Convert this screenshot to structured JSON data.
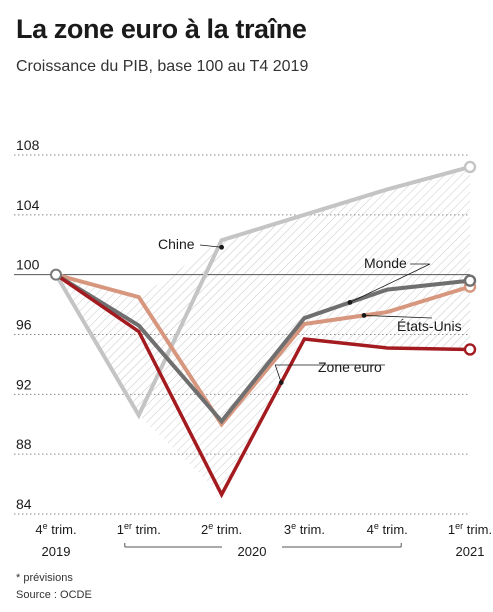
{
  "title": "La zone euro à la traîne",
  "subtitle": "Croissance du PIB, base 100 au T4 2019",
  "footnote": "* prévisions",
  "source": "Source : OCDE",
  "colors": {
    "chine": "#c4c4c4",
    "monde": "#6f6f6f",
    "etats_unis": "#d7977f",
    "zone_euro": "#a31a1f",
    "grid": "#8a8a8a"
  },
  "chart_data": {
    "type": "line",
    "title": "La zone euro à la traîne",
    "subtitle": "Croissance du PIB, base 100 au T4 2019",
    "ylim": [
      84,
      108
    ],
    "yticks": [
      84,
      88,
      92,
      96,
      100,
      104,
      108
    ],
    "grid": "horizontal dotted",
    "x_labels": [
      {
        "line1": "4",
        "sup": "e",
        "rest": " trim.",
        "line2": "2019"
      },
      {
        "line1": "1",
        "sup": "er",
        "rest": " trim.",
        "line2": ""
      },
      {
        "line1": "2",
        "sup": "e",
        "rest": " trim.",
        "line2": ""
      },
      {
        "line1": "3",
        "sup": "e",
        "rest": " trim.",
        "line2": ""
      },
      {
        "line1": "4",
        "sup": "e",
        "rest": " trim.",
        "line2": ""
      },
      {
        "line1": "1",
        "sup": "er",
        "rest": " trim.",
        "line2": "2021"
      }
    ],
    "year_bracket_label": "2020",
    "series": [
      {
        "name": "Chine",
        "color_key": "chine",
        "values": [
          100,
          90.6,
          102.3,
          104.0,
          105.7,
          107.2
        ]
      },
      {
        "name": "États-Unis",
        "color_key": "etats_unis",
        "values": [
          100,
          98.5,
          90.0,
          96.7,
          97.5,
          99.2
        ]
      },
      {
        "name": "Monde",
        "color_key": "monde",
        "values": [
          100,
          96.6,
          90.2,
          97.1,
          99.0,
          99.6
        ]
      },
      {
        "name": "Zone euro",
        "color_key": "zone_euro",
        "values": [
          100,
          96.2,
          85.3,
          95.7,
          95.1,
          95.0
        ]
      }
    ],
    "annotations": [
      {
        "series": "Chine",
        "text": "Chine"
      },
      {
        "series": "Monde",
        "text": "Monde"
      },
      {
        "series": "États-Unis",
        "text": "États-Unis"
      },
      {
        "series": "Zone euro",
        "text": "Zone euro"
      }
    ]
  }
}
